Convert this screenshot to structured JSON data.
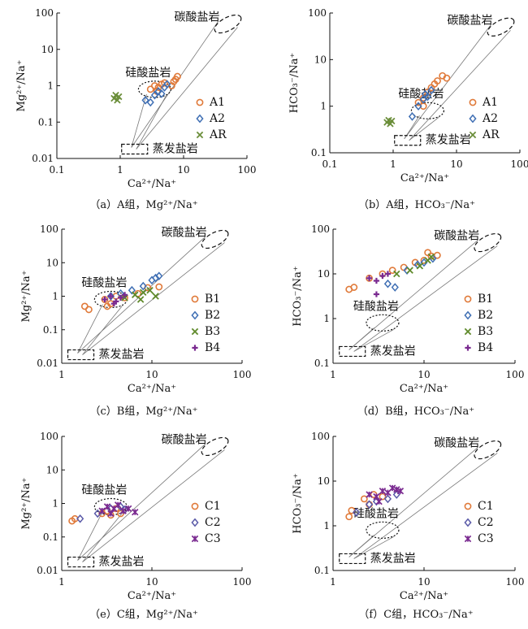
{
  "colors": {
    "axis": "#111111",
    "guide": "#777777",
    "A1": "#e07a3a",
    "A2": "#3f6fb4",
    "AR": "#6b8e3a",
    "B1": "#e07a3a",
    "B2": "#3f6fb4",
    "B3": "#5f8a2a",
    "B4": "#7a2a90",
    "C1": "#e07a3a",
    "C2": "#5a5aa8",
    "C3": "#7a2a90"
  },
  "chart_data": [
    {
      "id": "a",
      "type": "scatter",
      "caption": "（a）A组，Mg²⁺/Na⁺",
      "xlabel": "Ca²⁺/Na⁺",
      "ylabel": "Mg²⁺/Na⁺",
      "xscale": "log",
      "yscale": "log",
      "xlim": [
        0.1,
        100
      ],
      "ylim": [
        0.01,
        100
      ],
      "xticks": [
        "0.1",
        "1",
        "10",
        "100"
      ],
      "yticks": [
        "0.01",
        "0.1",
        "1",
        "10",
        "100"
      ],
      "regions": {
        "carbonate": "碳酸盐岩",
        "silicate": "硅酸盐岩",
        "evaporite": "蒸发盐岩"
      },
      "series": [
        {
          "name": "A1",
          "marker": "circle",
          "points": [
            [
              3.0,
              0.8
            ],
            [
              3.5,
              1.0
            ],
            [
              4.0,
              0.9
            ],
            [
              4.5,
              1.1
            ],
            [
              5.0,
              1.2
            ],
            [
              6.5,
              1.0
            ],
            [
              7.0,
              1.3
            ],
            [
              8.0,
              1.8
            ],
            [
              7.5,
              1.5
            ],
            [
              3.8,
              0.7
            ]
          ]
        },
        {
          "name": "A2",
          "marker": "diamond",
          "points": [
            [
              2.5,
              0.4
            ],
            [
              3.0,
              0.35
            ],
            [
              3.5,
              0.55
            ],
            [
              4.0,
              0.7
            ],
            [
              4.5,
              0.6
            ],
            [
              5.5,
              1.1
            ],
            [
              5.0,
              0.9
            ]
          ]
        },
        {
          "name": "AR",
          "marker": "x",
          "points": [
            [
              0.8,
              0.45
            ],
            [
              0.85,
              0.55
            ],
            [
              0.9,
              0.4
            ],
            [
              0.95,
              0.5
            ]
          ]
        }
      ]
    },
    {
      "id": "b",
      "type": "scatter",
      "caption": "（b）A组，HCO₃⁻/Na⁺",
      "xlabel": "Ca²⁺/Na⁺",
      "ylabel": "HCO₃⁻/Na⁺",
      "xscale": "log",
      "yscale": "log",
      "xlim": [
        0.1,
        100
      ],
      "ylim": [
        0.1,
        100
      ],
      "xticks": [
        "0.1",
        "1",
        "10",
        "100"
      ],
      "yticks": [
        "0.1",
        "1",
        "10",
        "100"
      ],
      "regions": {
        "carbonate": "碳酸盐岩",
        "silicate": "硅酸盐岩",
        "evaporite": "蒸发盐岩"
      },
      "series": [
        {
          "name": "A1",
          "marker": "circle",
          "points": [
            [
              2.5,
              1.2
            ],
            [
              3.0,
              1.5
            ],
            [
              3.5,
              2.0
            ],
            [
              4.0,
              2.5
            ],
            [
              4.5,
              3.0
            ],
            [
              5.0,
              3.5
            ],
            [
              6.0,
              4.5
            ],
            [
              7.0,
              4.0
            ],
            [
              3.0,
              1.0
            ]
          ]
        },
        {
          "name": "A2",
          "marker": "diamond",
          "points": [
            [
              2.0,
              0.6
            ],
            [
              2.5,
              1.0
            ],
            [
              3.0,
              1.4
            ],
            [
              3.2,
              1.8
            ],
            [
              3.5,
              1.6
            ],
            [
              4.0,
              2.2
            ]
          ]
        },
        {
          "name": "AR",
          "marker": "x",
          "points": [
            [
              0.8,
              0.45
            ],
            [
              0.85,
              0.5
            ],
            [
              0.9,
              0.42
            ],
            [
              0.95,
              0.48
            ]
          ]
        }
      ]
    },
    {
      "id": "c",
      "type": "scatter",
      "caption": "（c）B组，Mg²⁺/Na⁺",
      "xlabel": "Ca²⁺/Na⁺",
      "ylabel": "Mg²⁺/Na⁺",
      "xscale": "log",
      "yscale": "log",
      "xlim": [
        1,
        100
      ],
      "ylim": [
        0.01,
        100
      ],
      "xticks": [
        "1",
        "10",
        "100"
      ],
      "yticks": [
        "0.01",
        "0.1",
        "1",
        "10",
        "100"
      ],
      "regions": {
        "carbonate": "碳酸盐岩",
        "silicate": "硅酸盐岩",
        "evaporite": "蒸发盐岩"
      },
      "series": [
        {
          "name": "B1",
          "marker": "circle",
          "points": [
            [
              1.8,
              0.5
            ],
            [
              2.0,
              0.4
            ],
            [
              3.0,
              0.8
            ],
            [
              3.5,
              0.6
            ],
            [
              4.0,
              1.0
            ],
            [
              5.0,
              0.9
            ],
            [
              7.0,
              1.2
            ],
            [
              9.0,
              1.8
            ],
            [
              12.0,
              1.9
            ],
            [
              3.2,
              0.5
            ]
          ]
        },
        {
          "name": "B2",
          "marker": "diamond",
          "points": [
            [
              3.5,
              1.0
            ],
            [
              4.5,
              1.2
            ],
            [
              6.0,
              1.5
            ],
            [
              8.0,
              2.0
            ],
            [
              10.0,
              3.0
            ],
            [
              12.0,
              4.0
            ],
            [
              11.0,
              3.5
            ]
          ]
        },
        {
          "name": "B3",
          "marker": "x",
          "points": [
            [
              5.0,
              0.9
            ],
            [
              6.5,
              1.1
            ],
            [
              8.0,
              1.3
            ],
            [
              9.5,
              1.5
            ],
            [
              11.0,
              1.0
            ],
            [
              7.5,
              0.8
            ]
          ]
        },
        {
          "name": "B4",
          "marker": "plus",
          "points": [
            [
              3.0,
              0.8
            ],
            [
              3.5,
              1.0
            ],
            [
              4.0,
              0.7
            ],
            [
              4.5,
              0.9
            ],
            [
              5.0,
              1.1
            ],
            [
              3.8,
              0.6
            ]
          ]
        }
      ]
    },
    {
      "id": "d",
      "type": "scatter",
      "caption": "（d）B组，HCO₃⁻/Na⁺",
      "xlabel": "Ca²⁺/Na⁺",
      "ylabel": "HCO₃⁻/Na⁺",
      "xscale": "log",
      "yscale": "log",
      "xlim": [
        1,
        100
      ],
      "ylim": [
        0.1,
        100
      ],
      "xticks": [
        "1",
        "10",
        "100"
      ],
      "yticks": [
        "0.1",
        "1",
        "10",
        "100"
      ],
      "regions": {
        "carbonate": "碳酸盐岩",
        "silicate": "硅酸盐岩",
        "evaporite": "蒸发盐岩"
      },
      "series": [
        {
          "name": "B1",
          "marker": "circle",
          "points": [
            [
              1.5,
              4.5
            ],
            [
              1.7,
              5.0
            ],
            [
              2.5,
              8.0
            ],
            [
              3.5,
              10.0
            ],
            [
              4.5,
              12.0
            ],
            [
              6.0,
              14.0
            ],
            [
              8.0,
              18.0
            ],
            [
              10.0,
              20.0
            ],
            [
              12.0,
              25.0
            ],
            [
              14.0,
              26.0
            ],
            [
              11.0,
              30.0
            ]
          ]
        },
        {
          "name": "B2",
          "marker": "diamond",
          "points": [
            [
              4.0,
              6.0
            ],
            [
              4.8,
              5.0
            ],
            [
              6.5,
              12.0
            ],
            [
              8.5,
              16.0
            ],
            [
              10.0,
              18.0
            ],
            [
              12.5,
              22.0
            ]
          ]
        },
        {
          "name": "B3",
          "marker": "x",
          "points": [
            [
              5.0,
              10.0
            ],
            [
              7.0,
              12.0
            ],
            [
              9.0,
              15.0
            ],
            [
              11.0,
              20.0
            ],
            [
              12.0,
              24.0
            ]
          ]
        },
        {
          "name": "B4",
          "marker": "plus",
          "points": [
            [
              2.5,
              8.0
            ],
            [
              3.0,
              7.0
            ],
            [
              3.5,
              9.0
            ],
            [
              4.0,
              10.0
            ],
            [
              3.0,
              3.5
            ]
          ]
        }
      ]
    },
    {
      "id": "e",
      "type": "scatter",
      "caption": "（e）C组，Mg²⁺/Na⁺",
      "xlabel": "Ca²⁺/Na⁺",
      "ylabel": "Mg²⁺/Na⁺",
      "xscale": "log",
      "yscale": "log",
      "xlim": [
        1,
        100
      ],
      "ylim": [
        0.01,
        100
      ],
      "xticks": [
        "1",
        "10",
        "100"
      ],
      "yticks": [
        "0.01",
        "0.1",
        "1",
        "10",
        "100"
      ],
      "regions": {
        "carbonate": "碳酸盐岩",
        "silicate": "硅酸盐岩",
        "evaporite": "蒸发盐岩"
      },
      "series": [
        {
          "name": "C1",
          "marker": "circle",
          "points": [
            [
              1.3,
              0.3
            ],
            [
              1.4,
              0.35
            ],
            [
              2.8,
              0.5
            ],
            [
              3.2,
              0.6
            ],
            [
              4.0,
              0.7
            ],
            [
              4.5,
              0.5
            ],
            [
              3.5,
              0.45
            ]
          ]
        },
        {
          "name": "C2",
          "marker": "diamond",
          "points": [
            [
              1.6,
              0.35
            ],
            [
              2.5,
              0.5
            ],
            [
              3.5,
              0.7
            ],
            [
              4.5,
              0.8
            ],
            [
              5.0,
              0.65
            ]
          ]
        },
        {
          "name": "C3",
          "marker": "star",
          "points": [
            [
              2.8,
              0.6
            ],
            [
              3.2,
              0.8
            ],
            [
              3.8,
              0.7
            ],
            [
              4.2,
              0.9
            ],
            [
              4.8,
              0.6
            ],
            [
              5.5,
              0.7
            ],
            [
              6.5,
              0.55
            ],
            [
              3.5,
              0.5
            ]
          ]
        }
      ]
    },
    {
      "id": "f",
      "type": "scatter",
      "caption": "（f）C组，HCO₃⁻/Na⁺",
      "xlabel": "Ca²⁺/Na⁺",
      "ylabel": "HCO₃⁻/Na⁺",
      "xscale": "log",
      "yscale": "log",
      "xlim": [
        1,
        100
      ],
      "ylim": [
        0.1,
        100
      ],
      "xticks": [
        "1",
        "10",
        "100"
      ],
      "yticks": [
        "0.1",
        "1",
        "10",
        "100"
      ],
      "regions": {
        "carbonate": "碳酸盐岩",
        "silicate": "硅酸盐岩",
        "evaporite": "蒸发盐岩"
      },
      "series": [
        {
          "name": "C1",
          "marker": "circle",
          "points": [
            [
              1.5,
              1.6
            ],
            [
              1.6,
              2.2
            ],
            [
              2.2,
              4.0
            ],
            [
              2.8,
              5.0
            ],
            [
              3.5,
              4.5
            ],
            [
              2.5,
              3.0
            ]
          ]
        },
        {
          "name": "C2",
          "marker": "diamond",
          "points": [
            [
              1.8,
              2.0
            ],
            [
              2.5,
              3.0
            ],
            [
              3.0,
              3.5
            ],
            [
              4.0,
              4.0
            ],
            [
              5.0,
              5.0
            ]
          ]
        },
        {
          "name": "C3",
          "marker": "star",
          "points": [
            [
              2.5,
              5.0
            ],
            [
              3.0,
              4.5
            ],
            [
              3.5,
              6.0
            ],
            [
              4.0,
              5.5
            ],
            [
              4.5,
              7.0
            ],
            [
              5.0,
              6.5
            ],
            [
              5.5,
              6.0
            ],
            [
              3.2,
              3.5
            ]
          ]
        }
      ]
    }
  ]
}
